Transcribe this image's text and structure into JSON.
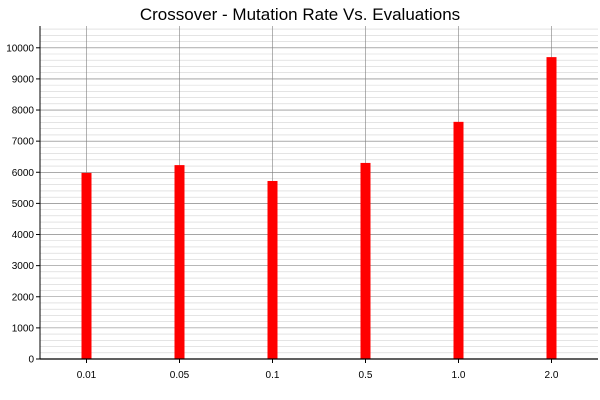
{
  "chart_data": {
    "type": "bar",
    "title": "Crossover - Mutation Rate Vs. Evaluations",
    "xlabel": "",
    "ylabel": "",
    "categories": [
      "0.01",
      "0.05",
      "0.1",
      "0.5",
      "1.0",
      "2.0"
    ],
    "values": [
      5980,
      6230,
      5720,
      6300,
      7620,
      9700
    ],
    "ylim": [
      0,
      10700
    ],
    "yticks": [
      0,
      1000,
      2000,
      3000,
      4000,
      5000,
      6000,
      7000,
      8000,
      9000,
      10000
    ],
    "minor_tick_step": 200,
    "grid": true,
    "legend": "none",
    "colors": {
      "bar": "#ff0000",
      "major_grid": "#7f7f7f",
      "minor_grid": "#d3d3d3",
      "axis": "#000000"
    }
  }
}
